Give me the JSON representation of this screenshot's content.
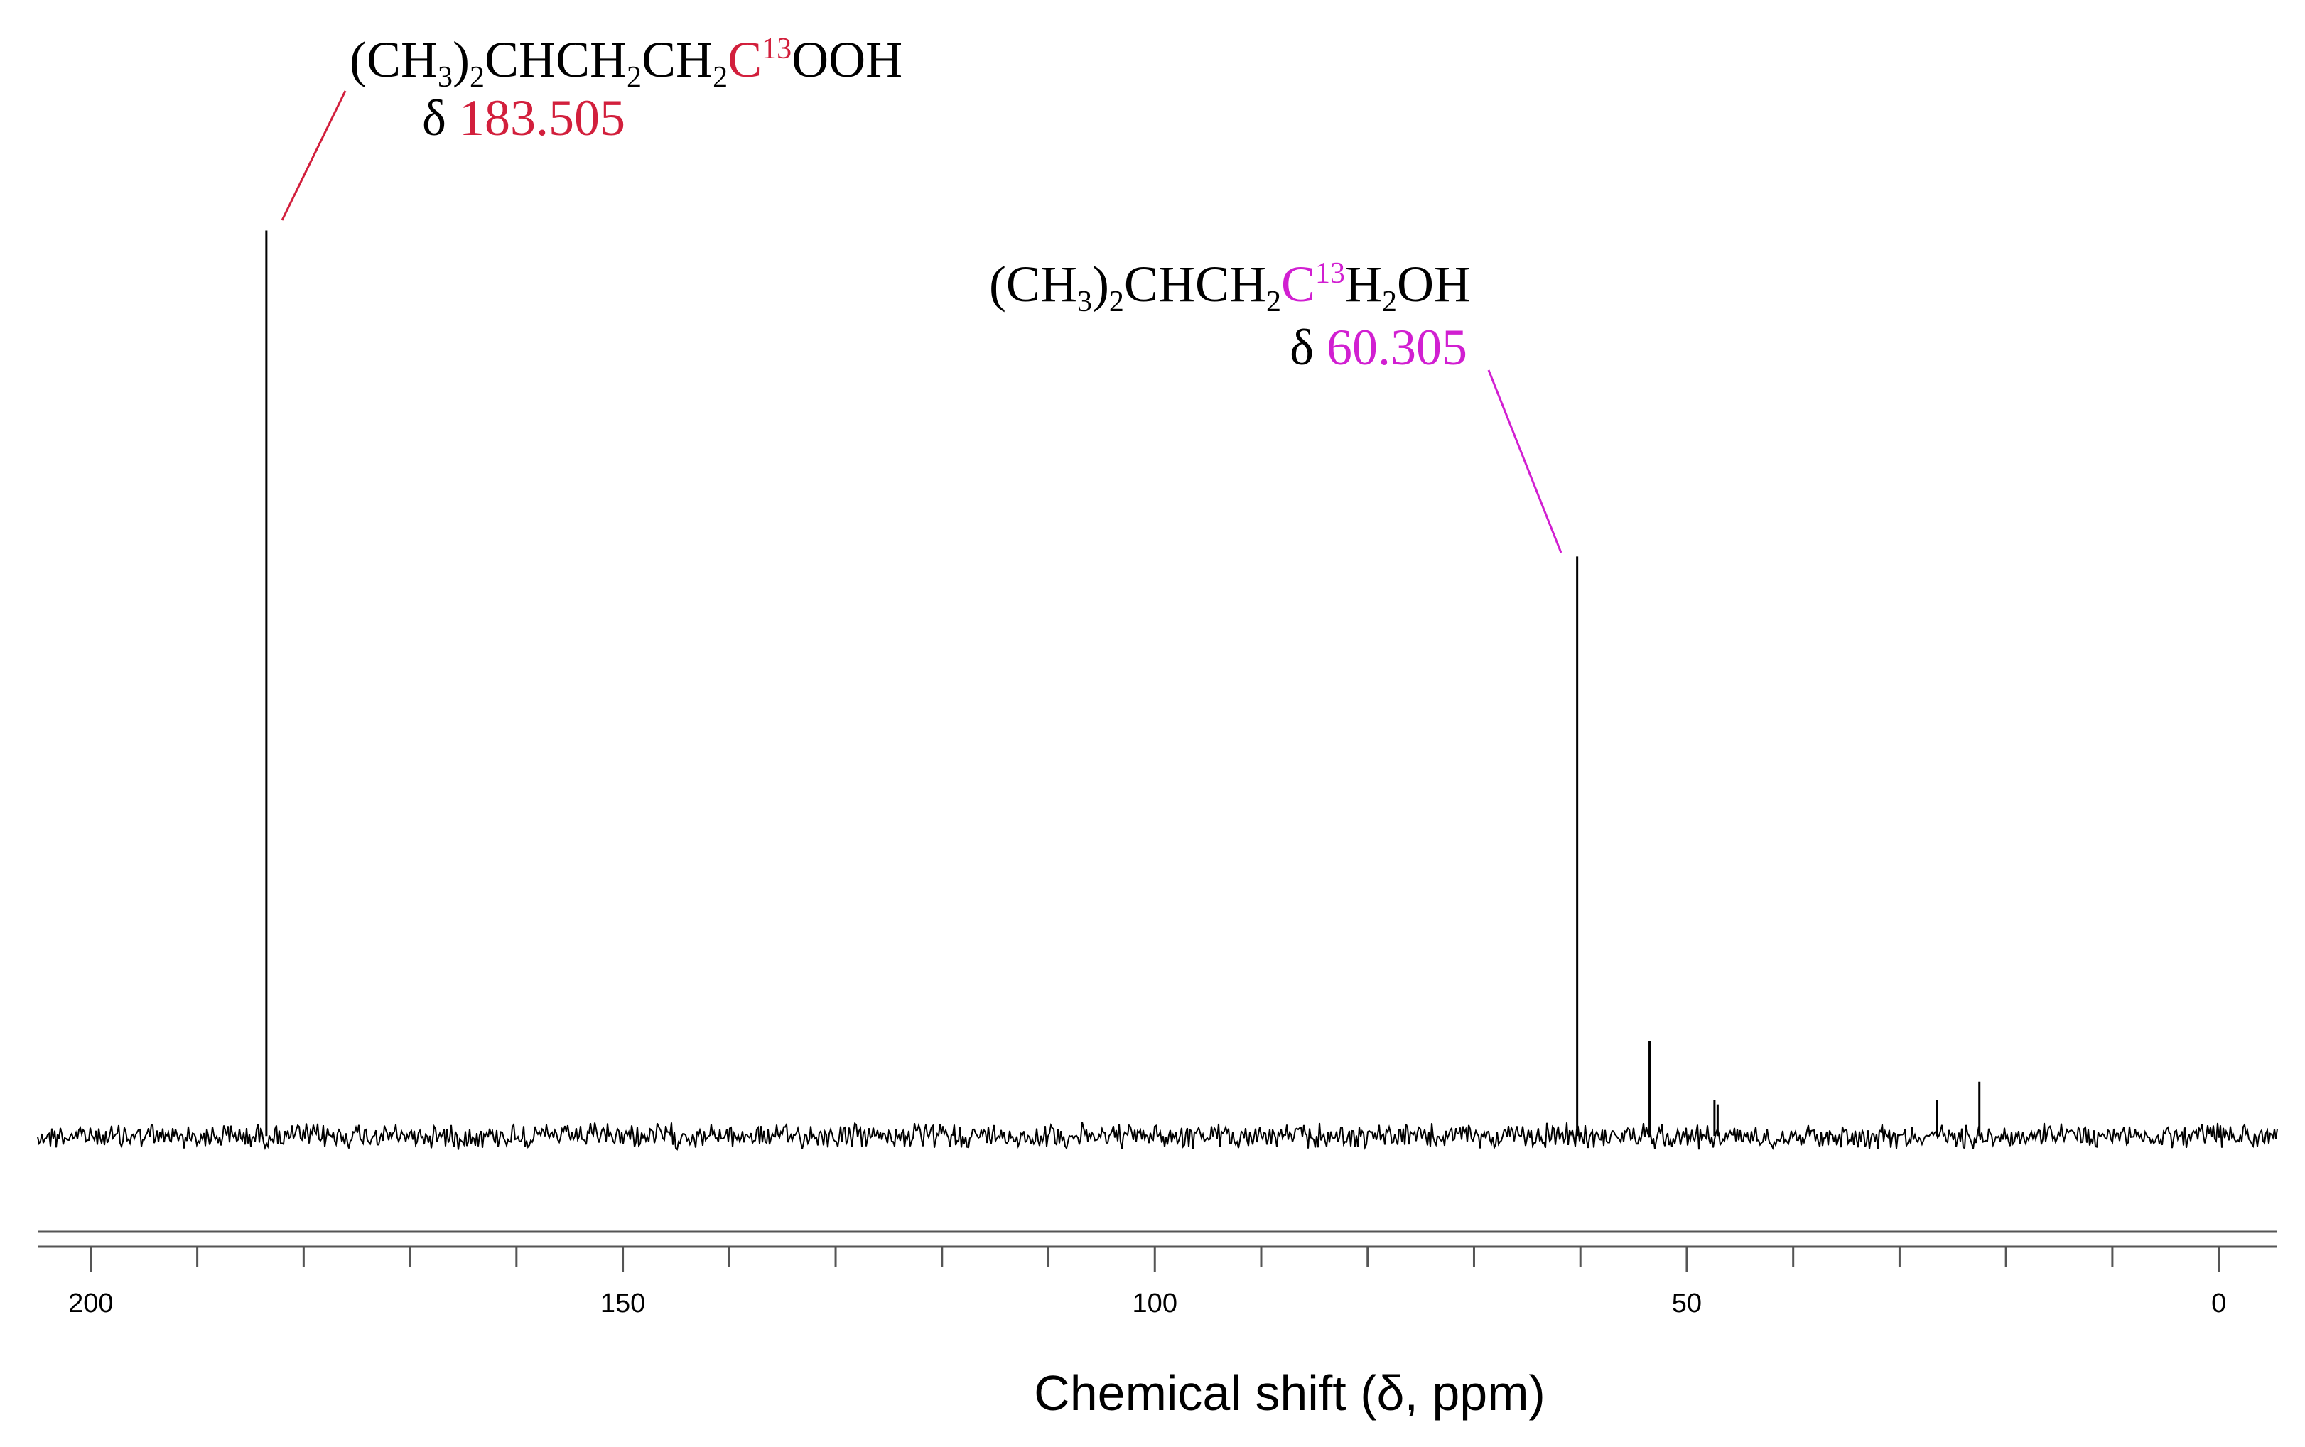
{
  "chart_data": {
    "type": "stem",
    "xlabel": "Chemical shift (δ, ppm)",
    "x": [
      183.505,
      60.305,
      53.5,
      47.4,
      47.1,
      26.5,
      22.5
    ],
    "values": [
      100,
      64,
      10.5,
      4,
      3.5,
      4,
      6
    ],
    "color": "#000000",
    "xlim": [
      205,
      -5.5
    ],
    "ylim": [
      -5,
      110
    ],
    "xticks": [
      200,
      150,
      100,
      50,
      0
    ],
    "xminorticks": [
      190,
      180,
      170,
      160,
      140,
      130,
      120,
      110,
      90,
      80,
      70,
      60,
      40,
      30,
      20,
      10
    ],
    "annotations": [
      {
        "peak": 0,
        "color": "#d21f3c",
        "delta": "δ",
        "shift_label": "183.505",
        "parts": [
          {
            "text": "(CH"
          },
          {
            "text": "3",
            "script": "sub"
          },
          {
            "text": ")"
          },
          {
            "text": "2",
            "script": "sub"
          },
          {
            "text": "CHCH"
          },
          {
            "text": "2",
            "script": "sub"
          },
          {
            "text": "CH"
          },
          {
            "text": "2",
            "script": "sub"
          },
          {
            "text": "C",
            "highlight": true
          },
          {
            "text": "13",
            "script": "sup",
            "highlight": true
          },
          {
            "text": "OOH"
          }
        ]
      },
      {
        "peak": 1,
        "color": "#d11fd1",
        "delta": "δ",
        "shift_label": "60.305",
        "parts": [
          {
            "text": "(CH"
          },
          {
            "text": "3",
            "script": "sub"
          },
          {
            "text": ")"
          },
          {
            "text": "2",
            "script": "sub"
          },
          {
            "text": "CHCH"
          },
          {
            "text": "2",
            "script": "sub"
          },
          {
            "text": "C",
            "highlight": true
          },
          {
            "text": "13",
            "script": "sup",
            "highlight": true
          },
          {
            "text": "H"
          },
          {
            "text": "2",
            "script": "sub"
          },
          {
            "text": "OH"
          }
        ]
      }
    ]
  }
}
